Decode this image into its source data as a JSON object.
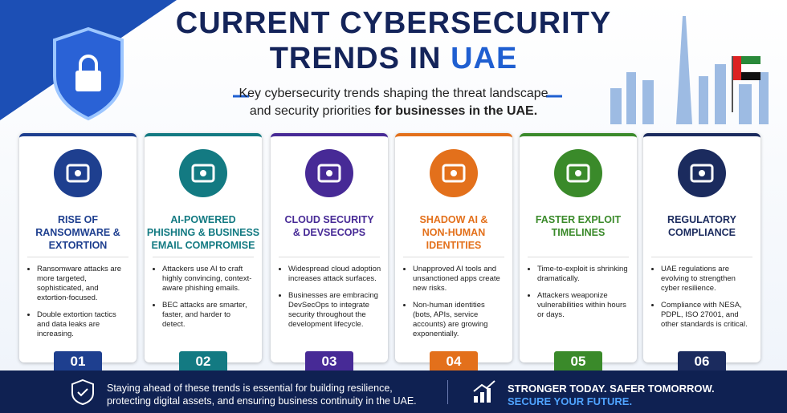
{
  "header": {
    "title_line1": "CURRENT CYBERSECURITY",
    "title_line2": "TRENDS IN",
    "title_highlight": "UAE",
    "subtitle_line1": "Key cybersecurity trends shaping the threat landscape",
    "subtitle_line2": "and security priorities",
    "subtitle_bold": "for businesses in the UAE."
  },
  "cards": [
    {
      "number": "01",
      "color": "#1e3f8f",
      "title": [
        "RISE OF",
        "RANSOMWARE &",
        "EXTORTION"
      ],
      "bullets": [
        "Ransomware attacks are more targeted, sophisticated, and extortion-focused.",
        "Double extortion tactics and data leaks are increasing."
      ]
    },
    {
      "number": "02",
      "color": "#137a82",
      "title": [
        "AI-POWERED",
        "PHISHING & BUSINESS",
        "EMAIL COMPROMISE"
      ],
      "bullets": [
        "Attackers use AI to craft highly convincing, context-aware phishing emails.",
        "BEC attacks are smarter, faster, and harder to detect."
      ]
    },
    {
      "number": "03",
      "color": "#472a96",
      "title": [
        "CLOUD SECURITY",
        "& DEVSECOPS"
      ],
      "bullets": [
        "Widespread cloud adoption increases attack surfaces.",
        "Businesses are embracing DevSecOps to integrate security throughout the development lifecycle."
      ]
    },
    {
      "number": "04",
      "color": "#e3701b",
      "title": [
        "SHADOW AI &",
        "NON-HUMAN",
        "IDENTITIES"
      ],
      "bullets": [
        "Unapproved AI tools and unsanctioned apps create new risks.",
        "Non-human identities (bots, APIs, service accounts) are growing exponentially."
      ]
    },
    {
      "number": "05",
      "color": "#3a8a2a",
      "title": [
        "FASTER EXPLOIT",
        "TIMELINES"
      ],
      "bullets": [
        "Time-to-exploit is shrinking dramatically.",
        "Attackers weaponize vulnerabilities within hours or days."
      ]
    },
    {
      "number": "06",
      "color": "#1b2b5e",
      "title": [
        "REGULATORY",
        "COMPLIANCE"
      ],
      "bullets": [
        "UAE regulations are evolving to strengthen cyber resilience.",
        "Compliance with NESA, PDPL, ISO 27001, and other standards is critical."
      ]
    }
  ],
  "footer": {
    "text": "Staying ahead of these trends is essential for building resilience, protecting digital assets, and ensuring business continuity in the UAE.",
    "tagline1": "STRONGER TODAY. SAFER TOMORROW.",
    "tagline2": "SECURE YOUR FUTURE."
  }
}
